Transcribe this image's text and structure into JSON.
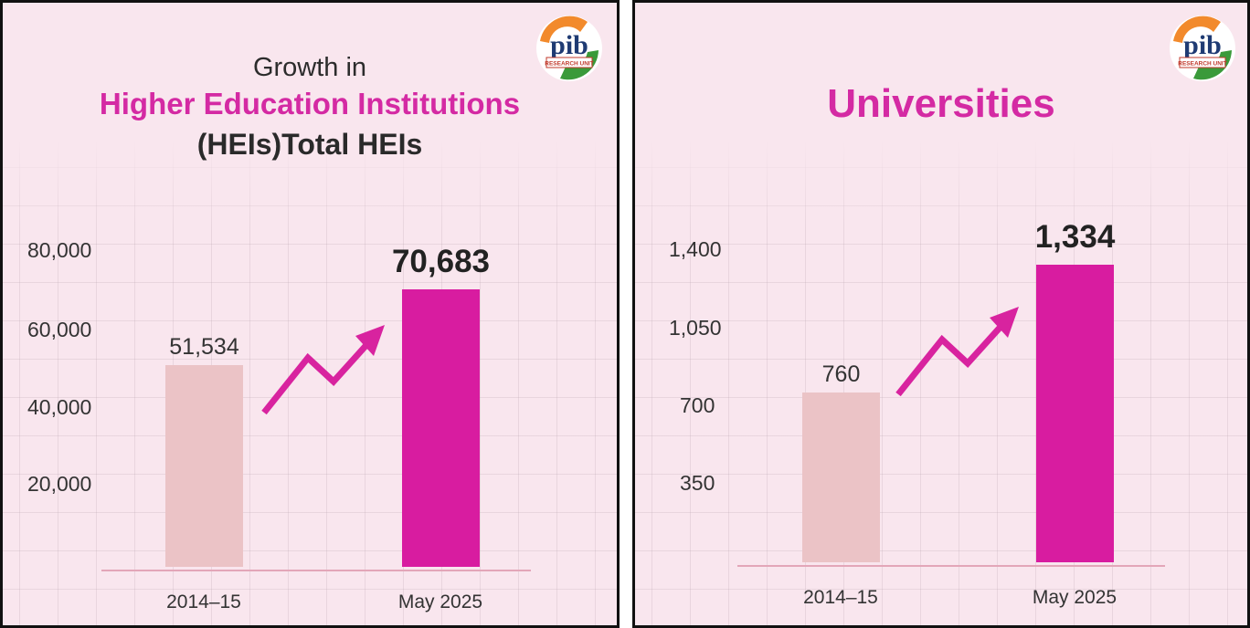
{
  "logo": {
    "text": "pib",
    "subtext": "RESEARCH UNIT"
  },
  "colors": {
    "accent": "#d42aa3",
    "bar_old": "#ebc3c6",
    "bar_new": "#d81ca0",
    "arrow": "#d8239f"
  },
  "chart_data": [
    {
      "type": "bar",
      "title_line1": "Growth in",
      "title_line2": "Higher Education Institutions",
      "title_line3": "(HEIs)Total HEIs",
      "categories": [
        "2014–15",
        "May 2025"
      ],
      "values": [
        51534,
        70683
      ],
      "value_labels": [
        "51,534",
        "70,683"
      ],
      "yticks": [
        "20,000",
        "40,000",
        "60,000",
        "80,000"
      ],
      "ylim": [
        0,
        80000
      ]
    },
    {
      "type": "bar",
      "title": "Universities",
      "categories": [
        "2014–15",
        "May 2025"
      ],
      "values": [
        760,
        1334
      ],
      "value_labels": [
        "760",
        "1,334"
      ],
      "yticks": [
        "350",
        "700",
        "1,050",
        "1,400"
      ],
      "ylim": [
        0,
        1400
      ]
    }
  ]
}
